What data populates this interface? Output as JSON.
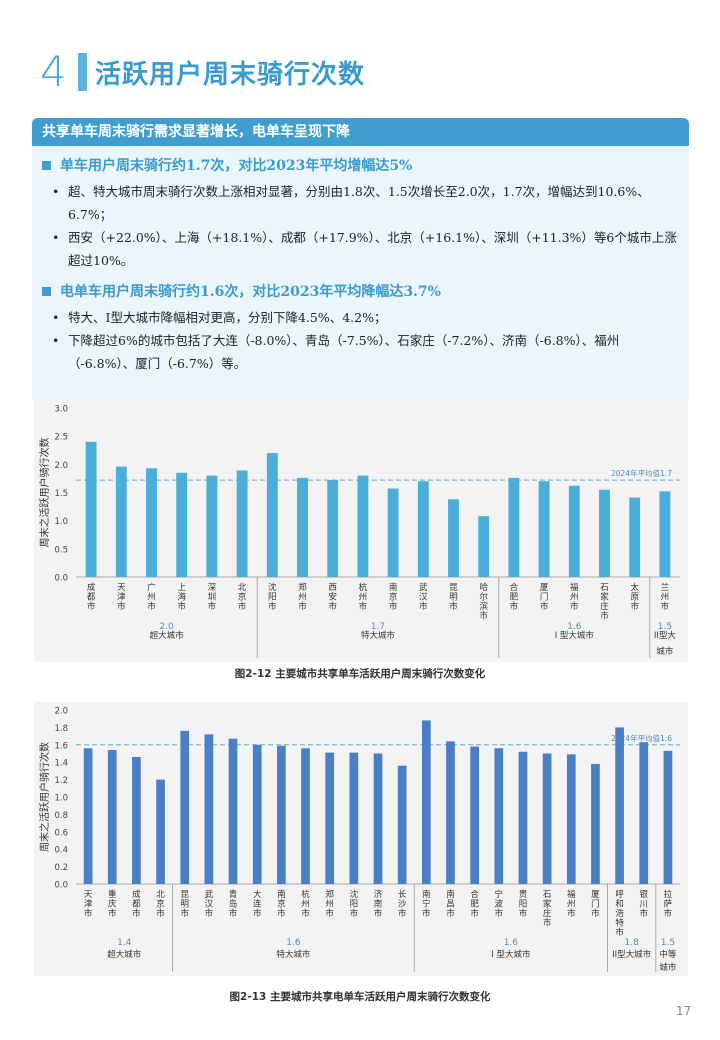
{
  "section": {
    "number": "4",
    "title": "活跃用户周末骑行次数"
  },
  "summary": {
    "title": "共享单车周末骑行需求显著增长，电单车呈现下降",
    "groups": [
      {
        "heading": "单车用户周末骑行约1.7次，对比2023年平均增幅达5%",
        "bullets": [
          "超、特大城市周末骑行次数上涨相对显著，分别由1.8次、1.5次增长至2.0次，1.7次，增幅达到10.6%、6.7%；",
          "西安（+22.0%）、上海（+18.1%）、成都（+17.9%）、北京（+16.1%）、深圳（+11.3%）等6个城市上涨超过10%。"
        ]
      },
      {
        "heading": "电单车用户周末骑行约1.6次，对比2023年平均降幅达3.7%",
        "bullets": [
          "特大、I型大城市降幅相对更高，分别下降4.5%、4.2%；",
          "下降超过6%的城市包括了大连（-8.0%）、青岛（-7.5%）、石家庄（-7.2%）、济南（-6.8%）、福州（-6.8%）、厦门（-6.7%）等。"
        ]
      }
    ]
  },
  "chart_data": [
    {
      "type": "bar",
      "title": "图2-12 主要城市共享单车活跃用户周末骑行次数变化",
      "ylabel": "周末之活跃用户骑行次数",
      "ylim": [
        0,
        3.0
      ],
      "yticks": [
        "0.0",
        "0.5",
        "1.0",
        "1.5",
        "2.0",
        "2.5",
        "3.0"
      ],
      "color": "#4aaed9",
      "reference_line": {
        "label": "2024年平均值1.7",
        "value": 1.72
      },
      "categories": [
        "成都市",
        "天津市",
        "广州市",
        "上海市",
        "深圳市",
        "北京市",
        "沈阳市",
        "郑州市",
        "西安市",
        "杭州市",
        "南京市",
        "武汉市",
        "昆明市",
        "哈尔滨市",
        "合肥市",
        "厦门市",
        "福州市",
        "石家庄市",
        "太原市",
        "兰州市"
      ],
      "values": [
        2.4,
        1.96,
        1.93,
        1.85,
        1.8,
        1.89,
        2.2,
        1.76,
        1.72,
        1.8,
        1.57,
        1.7,
        1.38,
        1.08,
        1.76,
        1.7,
        1.62,
        1.55,
        1.41,
        1.52
      ],
      "groups": [
        {
          "name": "超大城市",
          "avg": "2.0",
          "count": 6
        },
        {
          "name": "特大城市",
          "avg": "1.7",
          "count": 8
        },
        {
          "name": "I 型大城市",
          "avg": "1.6",
          "count": 5
        },
        {
          "name": "II型大城市",
          "avg": "1.5",
          "count": 1
        }
      ]
    },
    {
      "type": "bar",
      "title": "图2-13 主要城市共享电单车活跃用户周末骑行次数变化",
      "ylabel": "周末之活跃用户骑行次数",
      "ylim": [
        0,
        2.0
      ],
      "yticks": [
        "0.0",
        "0.2",
        "0.4",
        "0.6",
        "0.8",
        "1.0",
        "1.2",
        "1.4",
        "1.6",
        "1.8",
        "2.0"
      ],
      "color": "#4a7fc6",
      "reference_line": {
        "label": "2024年平均值1.6",
        "value": 1.6
      },
      "categories": [
        "天津市",
        "重庆市",
        "成都市",
        "北京市",
        "昆明市",
        "武汉市",
        "青岛市",
        "大连市",
        "南京市",
        "杭州市",
        "郑州市",
        "沈阳市",
        "济南市",
        "长沙市",
        "南宁市",
        "南昌市",
        "合肥市",
        "宁波市",
        "贵阳市",
        "石家庄市",
        "福州市",
        "厦门市",
        "呼和浩特市",
        "银川市",
        "拉萨市"
      ],
      "values": [
        1.56,
        1.54,
        1.46,
        1.2,
        1.76,
        1.72,
        1.67,
        1.6,
        1.59,
        1.56,
        1.51,
        1.51,
        1.5,
        1.36,
        1.88,
        1.64,
        1.58,
        1.56,
        1.52,
        1.5,
        1.49,
        1.38,
        1.8,
        1.63,
        1.53
      ],
      "groups": [
        {
          "name": "超大城市",
          "avg": "1.4",
          "count": 4
        },
        {
          "name": "特大城市",
          "avg": "1.6",
          "count": 10
        },
        {
          "name": "I 型大城市",
          "avg": "1.6",
          "count": 8
        },
        {
          "name": "II型大城市",
          "avg": "1.8",
          "count": 2
        },
        {
          "name": "中等城市",
          "avg": "1.5",
          "count": 1
        }
      ]
    }
  ],
  "page_number": "17"
}
